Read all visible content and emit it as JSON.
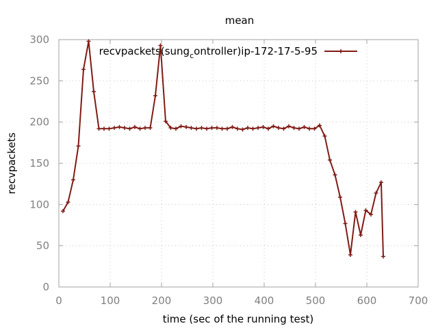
{
  "chart_data": {
    "type": "line",
    "title": "mean",
    "xlabel": "time (sec of the running test)",
    "ylabel": "recvpackets",
    "xlim": [
      0,
      700
    ],
    "ylim": [
      0,
      300
    ],
    "x_ticks": [
      "0",
      "100",
      "200",
      "300",
      "400",
      "500",
      "600",
      "700"
    ],
    "y_ticks": [
      "0",
      "50",
      "100",
      "150",
      "200",
      "250",
      "300"
    ],
    "grid": true,
    "legend_position": "top-right",
    "line_color": "#7f1a14",
    "series": [
      {
        "name": "recvpackets(sung_controller)ip-172-17-5-95",
        "legend_parts": [
          "recvpackets(sung",
          "c",
          "ontroller)ip-172-17-5-95"
        ],
        "x": [
          8,
          18,
          28,
          38,
          48,
          58,
          68,
          78,
          88,
          98,
          108,
          118,
          128,
          138,
          148,
          158,
          168,
          178,
          188,
          198,
          208,
          218,
          228,
          238,
          248,
          258,
          268,
          278,
          288,
          298,
          308,
          318,
          328,
          338,
          348,
          358,
          368,
          378,
          388,
          398,
          408,
          418,
          428,
          438,
          448,
          458,
          468,
          478,
          488,
          498,
          508,
          518,
          528,
          538,
          548,
          558,
          568,
          578,
          588,
          598,
          608,
          618,
          628,
          632
        ],
        "y": [
          92,
          103,
          130,
          171,
          264,
          298,
          237,
          192,
          192,
          192,
          193,
          194,
          193,
          192,
          194,
          192,
          193,
          193,
          232,
          293,
          201,
          193,
          192,
          195,
          194,
          193,
          192,
          193,
          192,
          193,
          193,
          192,
          192,
          194,
          192,
          191,
          193,
          192,
          193,
          194,
          192,
          195,
          193,
          192,
          195,
          193,
          192,
          194,
          192,
          192,
          196,
          183,
          154,
          136,
          109,
          77,
          39,
          91,
          63,
          93,
          88,
          114,
          127,
          37
        ]
      }
    ]
  }
}
